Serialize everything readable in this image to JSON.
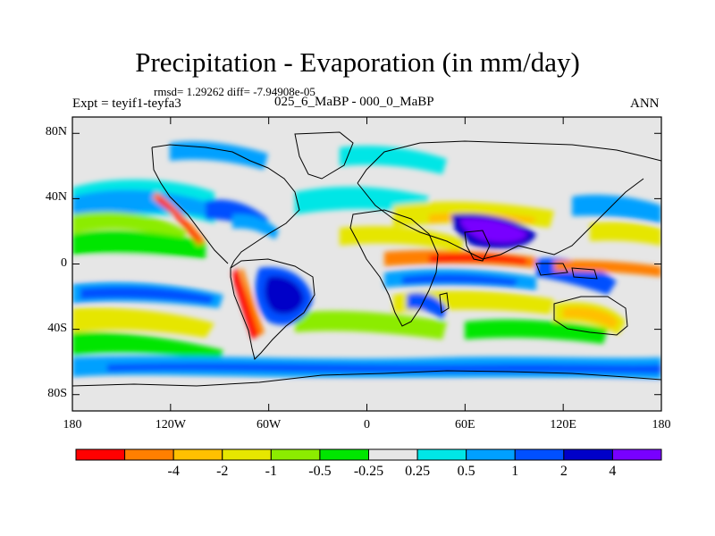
{
  "title": "Precipitation - Evaporation (in mm/day)",
  "stats": "rmsd= 1.29262 diff= -7.94908e-05",
  "expt": "Expt = teyif1-teyfa3",
  "case": "025_6_MaBP - 000_0_MaBP",
  "season": "ANN",
  "map": {
    "lon_range": [
      -180,
      180
    ],
    "lat_range": [
      -90,
      90
    ],
    "y_ticks": [
      {
        "label": "80N",
        "lat": 80
      },
      {
        "label": "40N",
        "lat": 40
      },
      {
        "label": "0",
        "lat": 0
      },
      {
        "label": "40S",
        "lat": -40
      },
      {
        "label": "80S",
        "lat": -80
      }
    ],
    "x_ticks": [
      {
        "label": "180",
        "lon": -180
      },
      {
        "label": "120W",
        "lon": -120
      },
      {
        "label": "60W",
        "lon": -60
      },
      {
        "label": "0",
        "lon": 0
      },
      {
        "label": "60E",
        "lon": 60
      },
      {
        "label": "120E",
        "lon": 120
      },
      {
        "label": "180",
        "lon": 180
      }
    ]
  },
  "colorbar": {
    "colors": [
      "#ff0000",
      "#ff7f00",
      "#ffc000",
      "#e6e600",
      "#8cec00",
      "#00e600",
      "#e6e6e6",
      "#00e6e6",
      "#00a0ff",
      "#0050ff",
      "#0000c8",
      "#7800ff"
    ],
    "labels": [
      "-4",
      "-2",
      "-1",
      "-0.5",
      "-0.25",
      "0.25",
      "0.5",
      "1",
      "2",
      "4"
    ],
    "label_boundaries": [
      2,
      3,
      4,
      5,
      6,
      7,
      8,
      9,
      10,
      11
    ]
  }
}
